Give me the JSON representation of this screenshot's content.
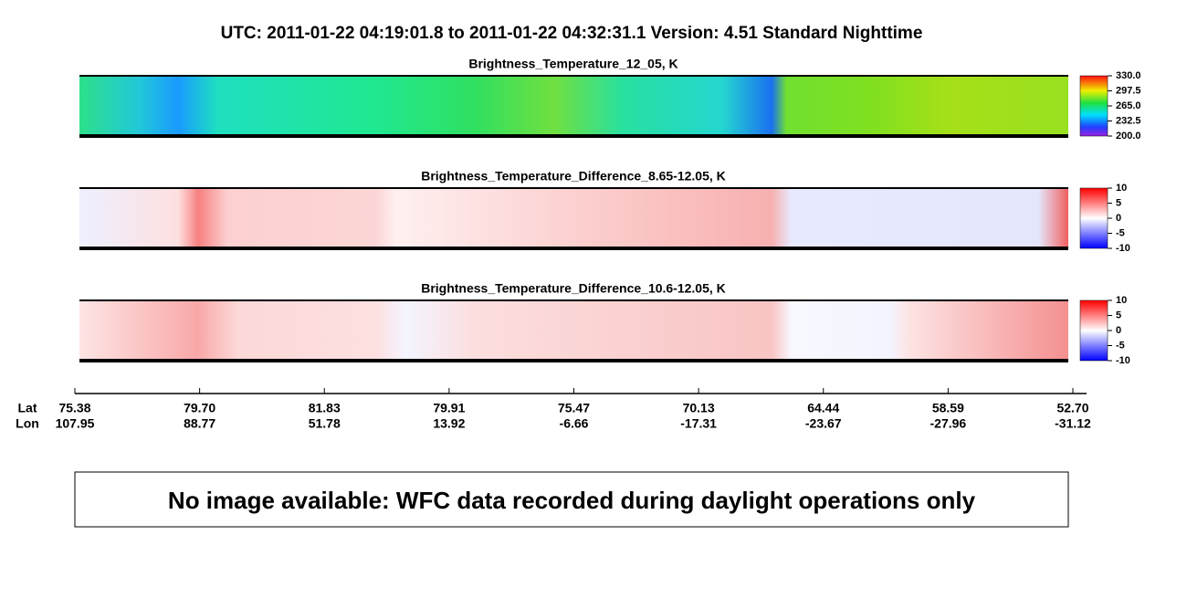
{
  "title": "UTC:  2011-01-22   04:19:01.8  to  2011-01-22   04:32:31.1    Version: 4.51  Standard Nighttime",
  "panels": [
    {
      "title": "Brightness_Temperature_12_05, K",
      "colorbar": [
        "330.0",
        "297.5",
        "265.0",
        "232.5",
        "200.0"
      ]
    },
    {
      "title": "Brightness_Temperature_Difference_8.65-12.05, K",
      "colorbar": [
        "10",
        "5",
        "0",
        "-5",
        "-10"
      ]
    },
    {
      "title": "Brightness_Temperature_Difference_10.6-12.05, K",
      "colorbar": [
        "10",
        "5",
        "0",
        "-5",
        "-10"
      ]
    }
  ],
  "axis": {
    "lat_label": "Lat",
    "lon_label": "Lon",
    "lat": [
      "75.38",
      "79.70",
      "81.83",
      "79.91",
      "75.47",
      "70.13",
      "64.44",
      "58.59",
      "52.70"
    ],
    "lon": [
      "107.95",
      "88.77",
      "51.78",
      "13.92",
      "-6.66",
      "-17.31",
      "-23.67",
      "-27.96",
      "-31.12"
    ]
  },
  "notice": "No image available: WFC data recorded during daylight operations only"
}
